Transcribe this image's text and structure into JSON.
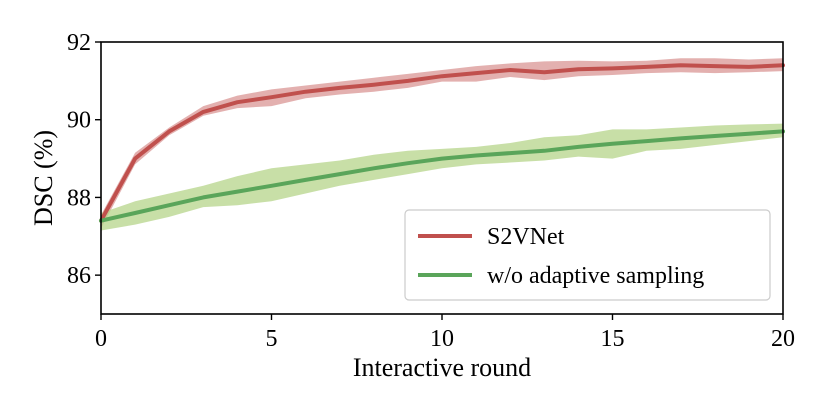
{
  "chart_data": {
    "type": "line",
    "title": "",
    "xlabel": "Interactive round",
    "ylabel": "DSC (%)",
    "xlim": [
      0,
      20
    ],
    "ylim": [
      85,
      92
    ],
    "xticks": [
      0,
      5,
      10,
      15,
      20
    ],
    "yticks": [
      86,
      88,
      90,
      92
    ],
    "grid": false,
    "legend_position": "bottom-right",
    "x": [
      0,
      1,
      2,
      3,
      4,
      5,
      6,
      7,
      8,
      9,
      10,
      11,
      12,
      13,
      14,
      15,
      16,
      17,
      18,
      19,
      20
    ],
    "series": [
      {
        "name": "S2VNet",
        "color": "#c0504d",
        "band_color": "#d99694",
        "mean": [
          87.4,
          89.0,
          89.7,
          90.2,
          90.45,
          90.58,
          90.72,
          90.82,
          90.9,
          91.0,
          91.12,
          91.2,
          91.28,
          91.22,
          91.3,
          91.32,
          91.36,
          91.4,
          91.38,
          91.36,
          91.4
        ],
        "lower": [
          87.2,
          88.85,
          89.6,
          90.1,
          90.3,
          90.35,
          90.55,
          90.65,
          90.72,
          90.82,
          90.98,
          90.98,
          91.1,
          91.02,
          91.12,
          91.15,
          91.2,
          91.22,
          91.2,
          91.22,
          91.25
        ],
        "upper": [
          87.55,
          89.15,
          89.8,
          90.35,
          90.62,
          90.78,
          90.88,
          90.98,
          91.08,
          91.18,
          91.28,
          91.38,
          91.45,
          91.5,
          91.52,
          91.5,
          91.52,
          91.58,
          91.58,
          91.55,
          91.58
        ]
      },
      {
        "name": "w/o adaptive sampling",
        "color": "#5aa55a",
        "band_color": "#b5d48a",
        "mean": [
          87.4,
          87.6,
          87.8,
          88.0,
          88.15,
          88.3,
          88.45,
          88.6,
          88.75,
          88.88,
          89.0,
          89.08,
          89.14,
          89.2,
          89.3,
          89.38,
          89.45,
          89.52,
          89.58,
          89.64,
          89.7
        ],
        "lower": [
          87.15,
          87.3,
          87.5,
          87.75,
          87.8,
          87.9,
          88.1,
          88.3,
          88.45,
          88.6,
          88.75,
          88.85,
          88.9,
          88.95,
          89.05,
          89.0,
          89.2,
          89.25,
          89.35,
          89.45,
          89.55
        ],
        "upper": [
          87.6,
          87.9,
          88.1,
          88.3,
          88.55,
          88.75,
          88.85,
          88.95,
          89.1,
          89.2,
          89.25,
          89.3,
          89.4,
          89.55,
          89.6,
          89.75,
          89.75,
          89.8,
          89.85,
          89.88,
          89.9
        ]
      }
    ]
  }
}
